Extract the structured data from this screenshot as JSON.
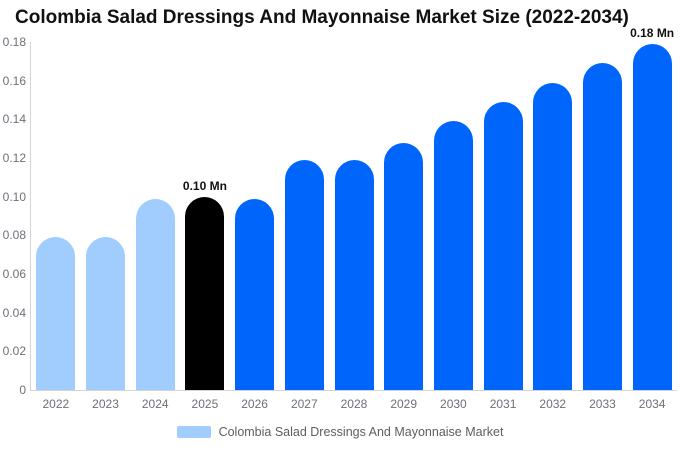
{
  "chart_data": {
    "type": "bar",
    "title": "Colombia Salad Dressings And Mayonnaise Market Size (2022-2034)",
    "unit": "Mn",
    "categories": [
      "2022",
      "2023",
      "2024",
      "2025",
      "2026",
      "2027",
      "2028",
      "2029",
      "2030",
      "2031",
      "2032",
      "2033",
      "2034"
    ],
    "values": [
      0.079,
      0.079,
      0.099,
      0.1,
      0.099,
      0.119,
      0.119,
      0.128,
      0.139,
      0.149,
      0.159,
      0.169,
      0.179
    ],
    "bar_roles": [
      "historical",
      "historical",
      "historical",
      "base-year",
      "forecast",
      "forecast",
      "forecast",
      "forecast",
      "forecast",
      "forecast",
      "forecast",
      "forecast",
      "forecast"
    ],
    "role_colors": {
      "historical": "#a0cdfd",
      "base-year": "#000000",
      "forecast": "#0066fb"
    },
    "annotations": [
      {
        "category": "2025",
        "text": "0.10 Mn"
      },
      {
        "category": "2034",
        "text": "0.18 Mn"
      }
    ],
    "ylim": [
      0,
      0.18
    ],
    "y_ticks": [
      "0",
      "0.02",
      "0.04",
      "0.06",
      "0.08",
      "0.10",
      "0.12",
      "0.14",
      "0.16",
      "0.18"
    ],
    "grid": false,
    "axis": {
      "text_color": "#6e7079",
      "line_color": "#d4d4d4"
    },
    "legend": {
      "label": "Colombia Salad Dressings And Mayonnaise Market",
      "swatch_color": "#a0cdfd",
      "position": "bottom"
    }
  }
}
